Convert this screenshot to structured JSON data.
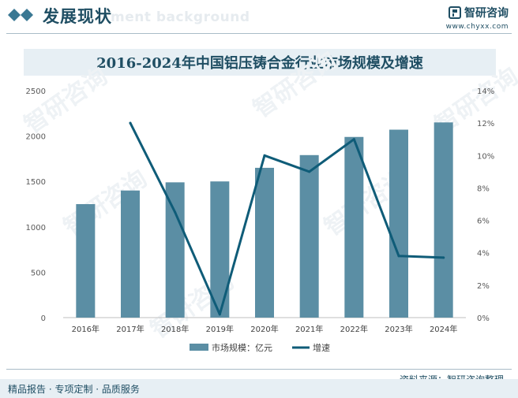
{
  "header": {
    "title": "发展现状",
    "ghost_text": "ment background",
    "brand_name": "智研咨询",
    "brand_url": "www.chyxx.com"
  },
  "chart_data": {
    "type": "bar",
    "title": "2016-2024年中国铝压铸合金行业市场规模及增速",
    "categories": [
      "2016年",
      "2017年",
      "2018年",
      "2019年",
      "2020年",
      "2021年",
      "2022年",
      "2023年",
      "2024年"
    ],
    "series": [
      {
        "name": "市场规模：亿元",
        "type": "bar",
        "axis": "left",
        "color": "#5b8ea4",
        "values": [
          1250,
          1400,
          1490,
          1500,
          1650,
          1790,
          1990,
          2070,
          2150
        ]
      },
      {
        "name": "增速",
        "type": "line",
        "axis": "right",
        "color": "#0f5c78",
        "values": [
          null,
          12.0,
          6.5,
          0.2,
          10.0,
          9.0,
          11.0,
          3.8,
          3.7
        ]
      }
    ],
    "y_left": {
      "min": 0,
      "max": 2500,
      "ticks": [
        "0",
        "500",
        "1000",
        "1500",
        "2000",
        "2500"
      ]
    },
    "y_right": {
      "min": 0,
      "max": 14,
      "ticks": [
        "0%",
        "2%",
        "4%",
        "6%",
        "8%",
        "10%",
        "12%",
        "14%"
      ]
    },
    "legend_position": "bottom",
    "grid": false
  },
  "footer": {
    "left_text": "精品报告 · 专项定制 · 品质服务",
    "source": "资料来源：智研咨询整理"
  }
}
